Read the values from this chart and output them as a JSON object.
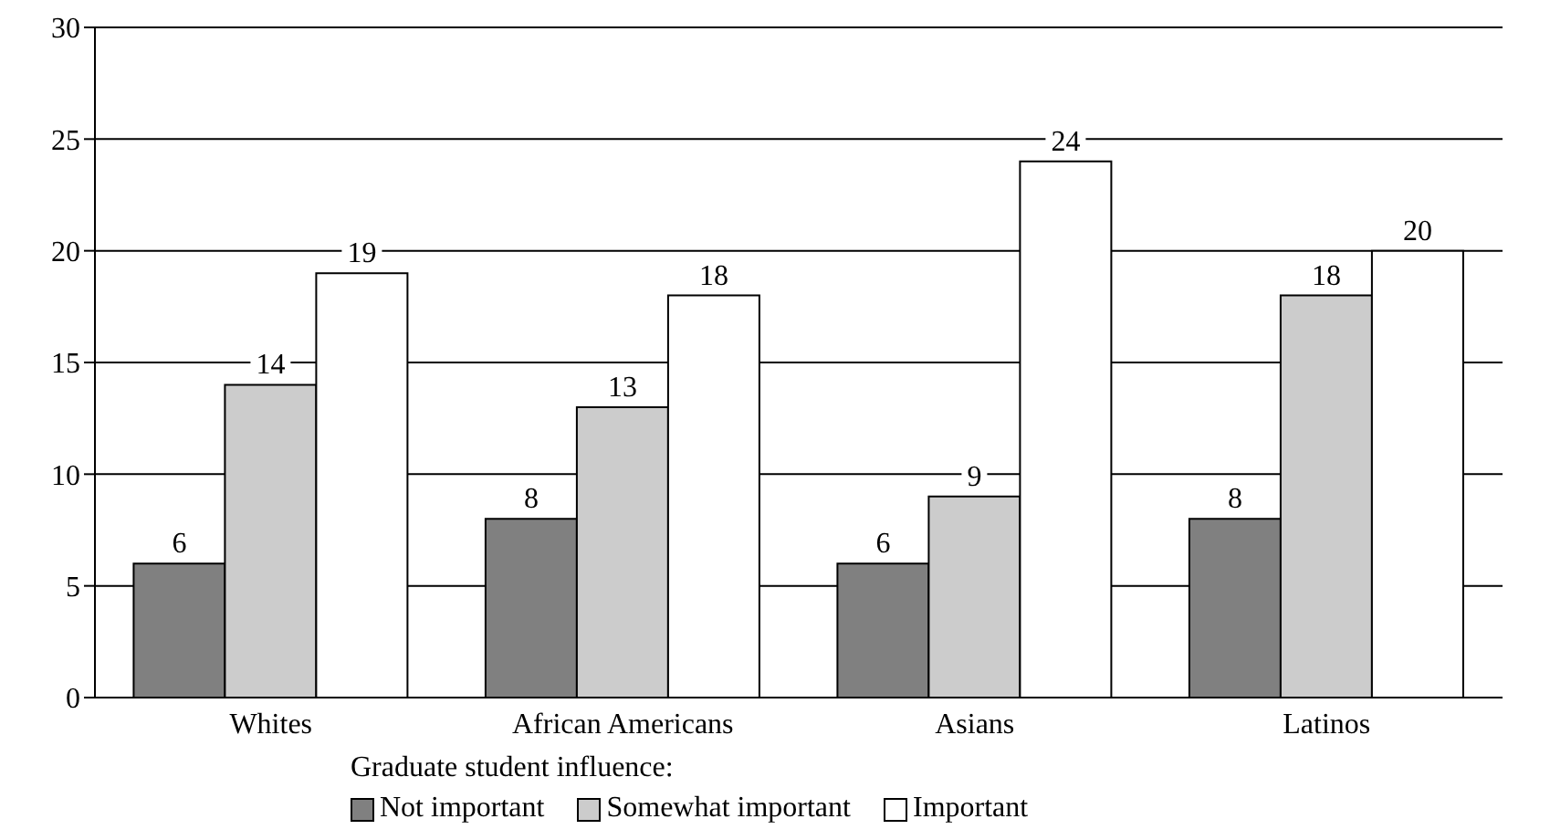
{
  "chart_data": {
    "type": "bar",
    "categories": [
      "Whites",
      "African Americans",
      "Asians",
      "Latinos"
    ],
    "series": [
      {
        "name": "Not important",
        "color": "#808080",
        "values": [
          6,
          8,
          6,
          8
        ]
      },
      {
        "name": "Somewhat important",
        "color": "#cccccc",
        "values": [
          14,
          13,
          9,
          18
        ]
      },
      {
        "name": "Important",
        "color": "#ffffff",
        "values": [
          19,
          18,
          24,
          20
        ]
      }
    ],
    "legend_title": "Graduate student influence:",
    "legend": "bottom",
    "ylim": [
      0,
      30
    ],
    "yticks": [
      0,
      5,
      10,
      15,
      20,
      25,
      30
    ],
    "grid": "y",
    "data_labels": true
  }
}
